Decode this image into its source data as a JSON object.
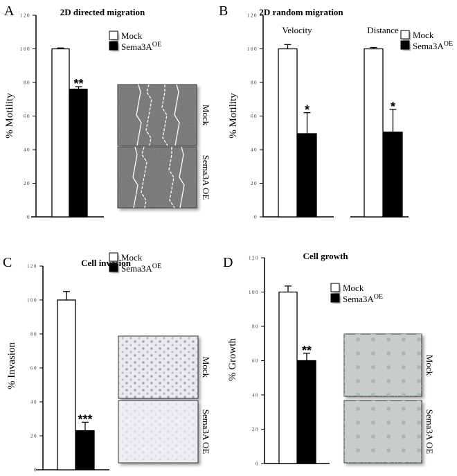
{
  "colors": {
    "mock": "#ffffff",
    "oe": "#000000",
    "axis": "#000000"
  },
  "legend": {
    "mock": "Mock",
    "oe_base": "Sema3A",
    "oe_sup": "OE"
  },
  "image_labels": {
    "mock": "Mock",
    "oe": "Sema3A OE"
  },
  "chart_data": [
    {
      "panel": "A",
      "type": "bar",
      "title": "2D directed migration",
      "ylabel": "% Motility",
      "ylim": [
        0,
        120
      ],
      "yticks": [
        0,
        20,
        40,
        60,
        80,
        100,
        120
      ],
      "groups": [
        {
          "label": "",
          "categories": [
            "Mock",
            "Sema3A OE"
          ],
          "values": [
            100,
            76
          ],
          "errors": [
            0.5,
            1.5
          ],
          "significance": [
            "",
            "**"
          ]
        }
      ],
      "has_images": true,
      "images": "wound-healing"
    },
    {
      "panel": "B",
      "type": "bar",
      "title": "2D random migration",
      "ylabel": "% Motility",
      "ylim": [
        0,
        120
      ],
      "yticks": [
        0,
        20,
        40,
        60,
        80,
        100,
        120
      ],
      "groups": [
        {
          "label": "Velocity",
          "categories": [
            "Mock",
            "Sema3A OE"
          ],
          "values": [
            100,
            49.5
          ],
          "errors": [
            2.5,
            12.5
          ],
          "significance": [
            "",
            "*"
          ]
        },
        {
          "label": "Distance",
          "categories": [
            "Mock",
            "Sema3A OE"
          ],
          "values": [
            100,
            50.5
          ],
          "errors": [
            0.8,
            13.5
          ],
          "significance": [
            "",
            "*"
          ]
        }
      ],
      "has_images": false
    },
    {
      "panel": "C",
      "type": "bar",
      "title": "Cell invasion",
      "ylabel": "% Invasion",
      "ylim": [
        0,
        120
      ],
      "yticks": [
        0,
        20,
        40,
        60,
        80,
        100,
        120
      ],
      "groups": [
        {
          "label": "",
          "categories": [
            "Mock",
            "Sema3A OE"
          ],
          "values": [
            100,
            23
          ],
          "errors": [
            5,
            5
          ],
          "significance": [
            "",
            "***"
          ]
        }
      ],
      "has_images": true,
      "images": "invasion"
    },
    {
      "panel": "D",
      "type": "bar",
      "title": "Cell growth",
      "ylabel": "% Growth",
      "ylim": [
        0,
        120
      ],
      "yticks": [
        0,
        20,
        40,
        60,
        80,
        100,
        120
      ],
      "groups": [
        {
          "label": "",
          "categories": [
            "Mock",
            "Sema3A OE"
          ],
          "values": [
            100,
            60
          ],
          "errors": [
            3.5,
            4.3
          ],
          "significance": [
            "",
            "**"
          ]
        }
      ],
      "has_images": true,
      "images": "growth"
    }
  ]
}
